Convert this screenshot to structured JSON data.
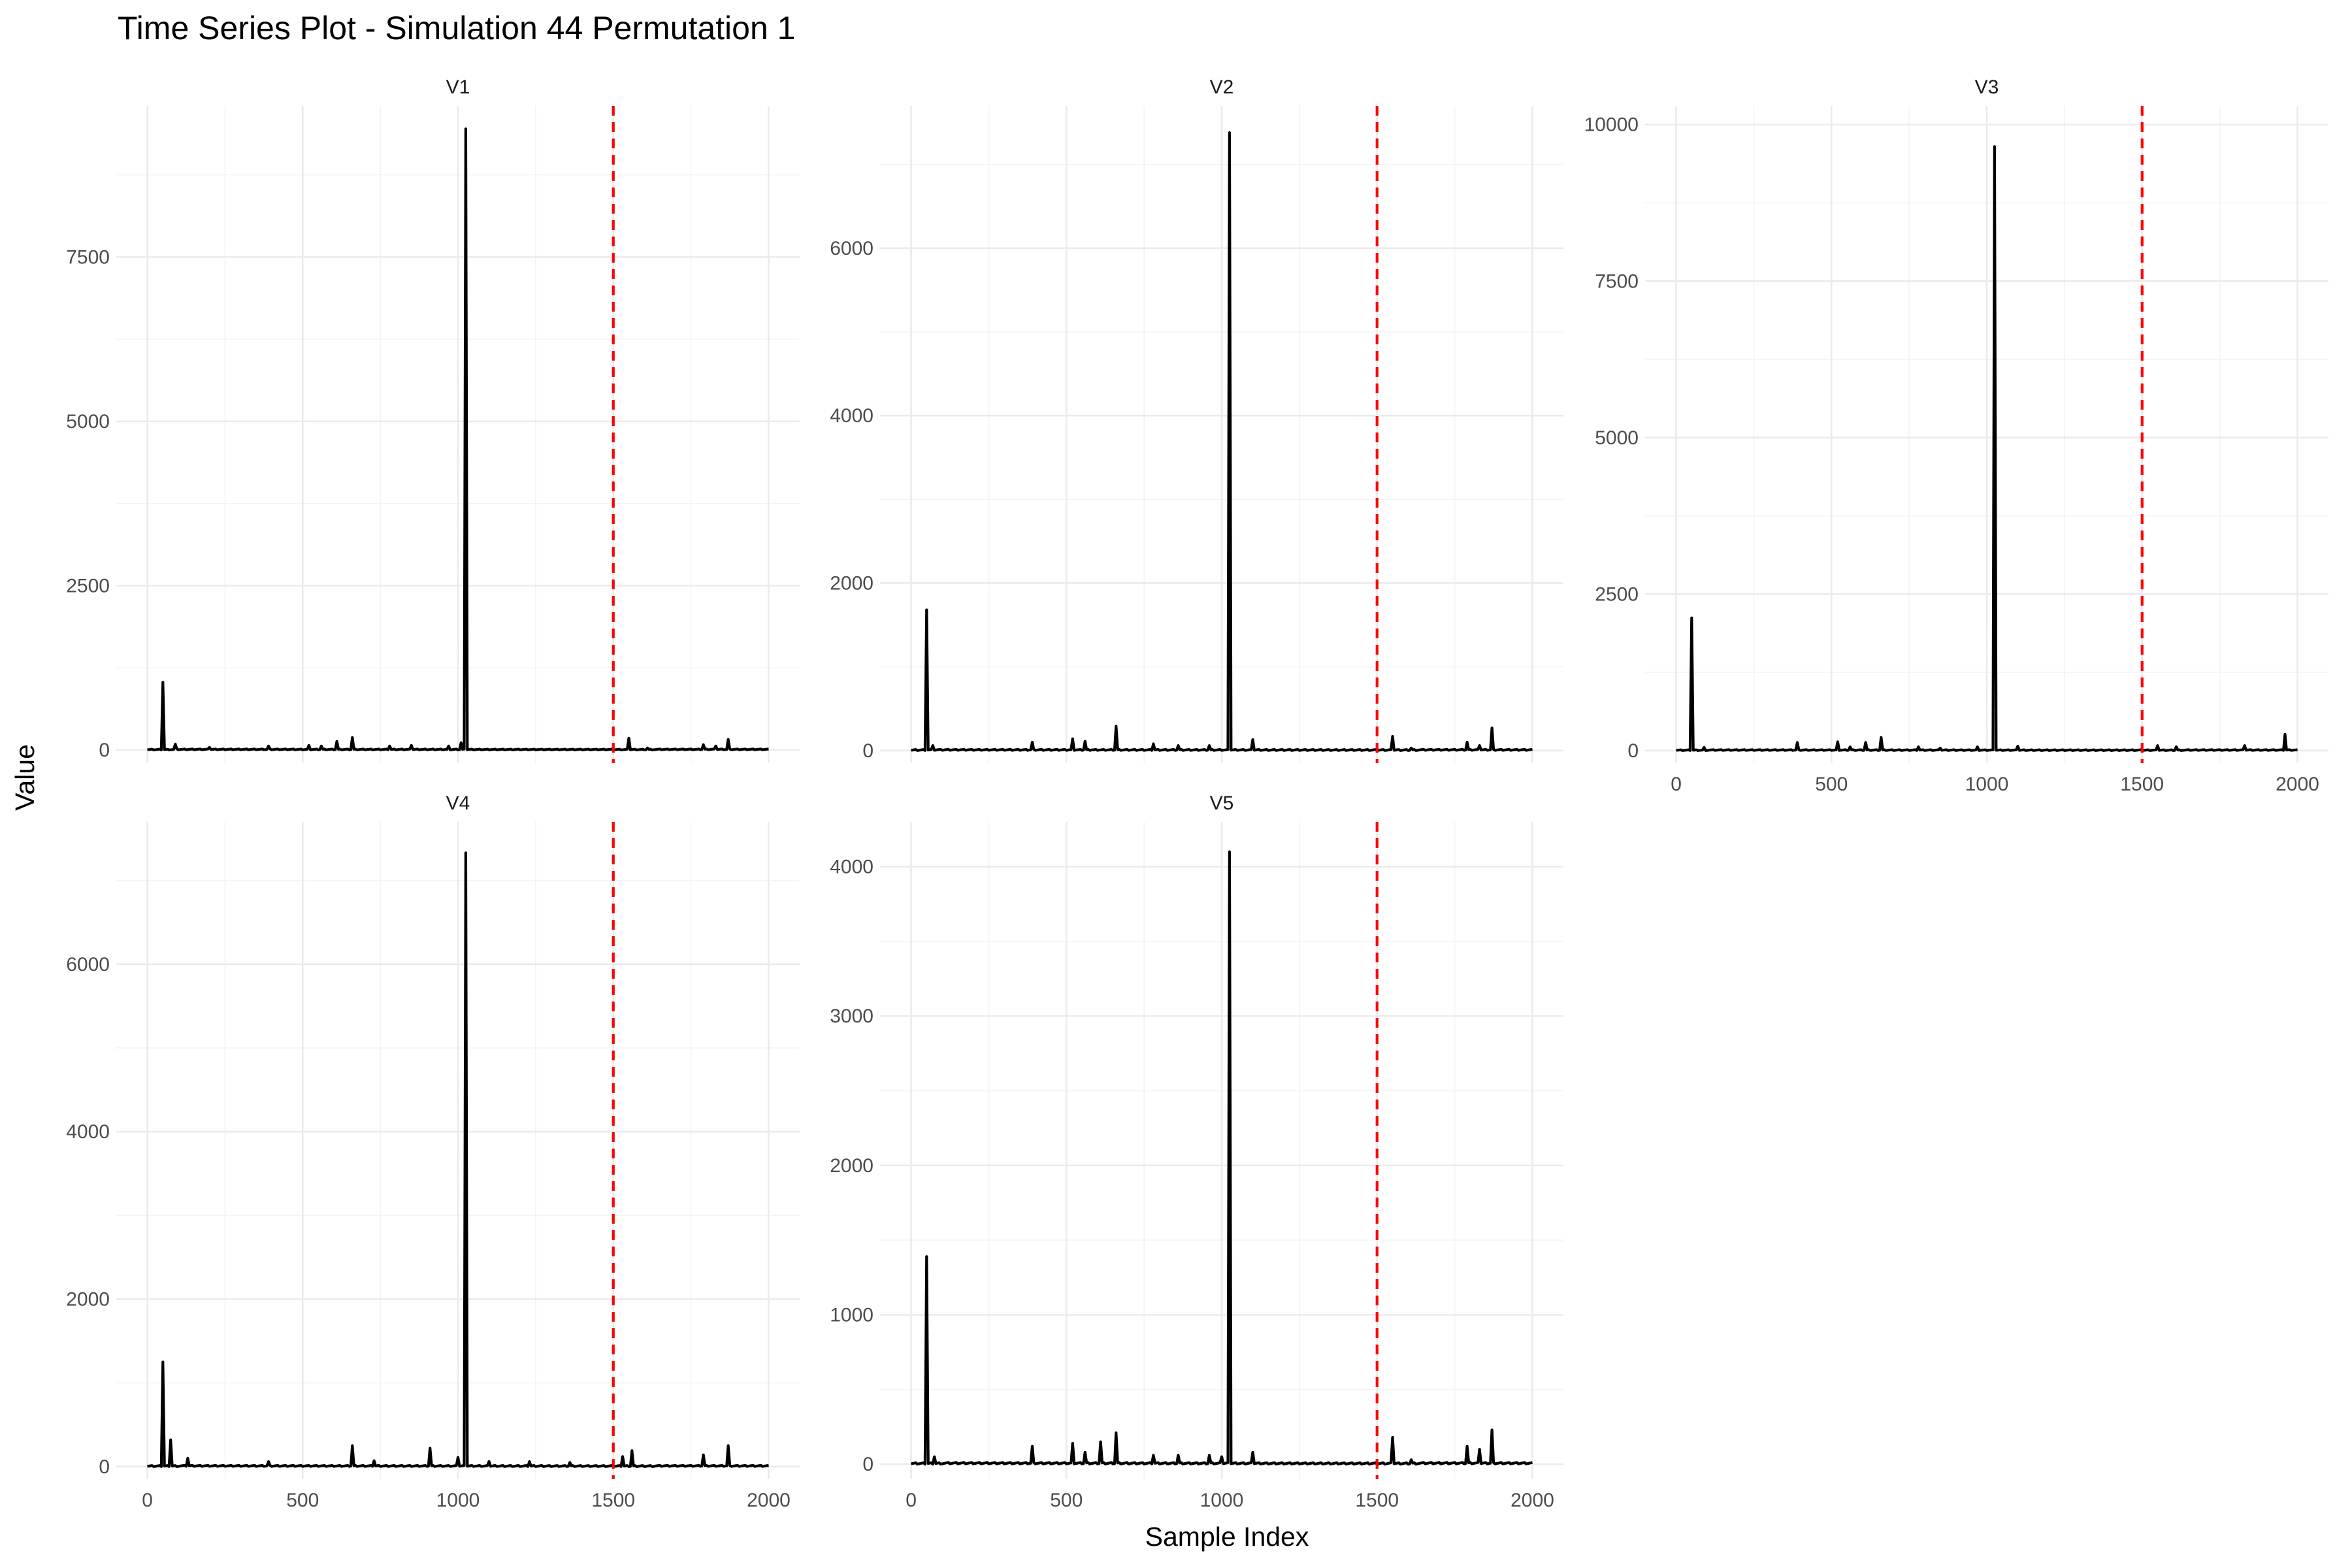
{
  "chart_data": {
    "type": "line",
    "title": "Time Series Plot - Simulation 44 Permutation 1",
    "xlabel": "Sample Index",
    "ylabel": "Value",
    "x_range": [
      0,
      2000
    ],
    "x_ticks": [
      0,
      500,
      1000,
      1500,
      2000
    ],
    "vline_x": 1500,
    "vline_color": "#ff0000",
    "line_color": "#000000",
    "grid": true,
    "panels": [
      {
        "name": "V1",
        "ylim": [
          -200,
          9800
        ],
        "y_ticks": [
          0,
          2500,
          5000,
          7500
        ],
        "show_x_labels": false,
        "baseline": 10,
        "spikes": [
          [
            50,
            1030
          ],
          [
            90,
            90
          ],
          [
            200,
            40
          ],
          [
            390,
            60
          ],
          [
            520,
            70
          ],
          [
            560,
            60
          ],
          [
            610,
            130
          ],
          [
            660,
            190
          ],
          [
            780,
            60
          ],
          [
            850,
            70
          ],
          [
            970,
            60
          ],
          [
            1010,
            110
          ],
          [
            1025,
            9450
          ],
          [
            1550,
            180
          ],
          [
            1610,
            30
          ],
          [
            1790,
            80
          ],
          [
            1830,
            60
          ],
          [
            1870,
            160
          ]
        ]
      },
      {
        "name": "V2",
        "ylim": [
          -150,
          7700
        ],
        "y_ticks": [
          0,
          2000,
          4000,
          6000
        ],
        "show_x_labels": false,
        "baseline": 10,
        "spikes": [
          [
            50,
            1680
          ],
          [
            70,
            60
          ],
          [
            390,
            100
          ],
          [
            520,
            140
          ],
          [
            560,
            110
          ],
          [
            660,
            290
          ],
          [
            780,
            80
          ],
          [
            860,
            60
          ],
          [
            960,
            60
          ],
          [
            1025,
            7380
          ],
          [
            1100,
            130
          ],
          [
            1550,
            170
          ],
          [
            1610,
            30
          ],
          [
            1790,
            100
          ],
          [
            1830,
            60
          ],
          [
            1870,
            270
          ]
        ]
      },
      {
        "name": "V3",
        "ylim": [
          -200,
          10300
        ],
        "y_ticks": [
          0,
          2500,
          5000,
          7500,
          10000
        ],
        "show_x_labels": true,
        "baseline": 10,
        "spikes": [
          [
            50,
            2120
          ],
          [
            90,
            50
          ],
          [
            390,
            130
          ],
          [
            520,
            140
          ],
          [
            560,
            60
          ],
          [
            610,
            130
          ],
          [
            660,
            210
          ],
          [
            780,
            60
          ],
          [
            850,
            40
          ],
          [
            970,
            60
          ],
          [
            1025,
            9650
          ],
          [
            1100,
            70
          ],
          [
            1550,
            80
          ],
          [
            1610,
            60
          ],
          [
            1830,
            80
          ],
          [
            1960,
            260
          ]
        ]
      },
      {
        "name": "V4",
        "ylim": [
          -150,
          7700
        ],
        "y_ticks": [
          0,
          2000,
          4000,
          6000
        ],
        "show_x_labels": true,
        "baseline": 10,
        "spikes": [
          [
            50,
            1250
          ],
          [
            75,
            320
          ],
          [
            130,
            100
          ],
          [
            390,
            60
          ],
          [
            660,
            250
          ],
          [
            730,
            70
          ],
          [
            910,
            220
          ],
          [
            1000,
            110
          ],
          [
            1025,
            7330
          ],
          [
            1100,
            60
          ],
          [
            1230,
            60
          ],
          [
            1360,
            50
          ],
          [
            1530,
            120
          ],
          [
            1560,
            190
          ],
          [
            1790,
            140
          ],
          [
            1870,
            250
          ]
        ]
      },
      {
        "name": "V5",
        "ylim": [
          -100,
          4300
        ],
        "y_ticks": [
          0,
          1000,
          2000,
          3000,
          4000
        ],
        "show_x_labels": true,
        "baseline": 8,
        "spikes": [
          [
            50,
            1390
          ],
          [
            75,
            50
          ],
          [
            390,
            120
          ],
          [
            520,
            140
          ],
          [
            560,
            80
          ],
          [
            610,
            150
          ],
          [
            660,
            210
          ],
          [
            780,
            60
          ],
          [
            860,
            60
          ],
          [
            960,
            60
          ],
          [
            1000,
            50
          ],
          [
            1025,
            4100
          ],
          [
            1100,
            80
          ],
          [
            1550,
            180
          ],
          [
            1610,
            30
          ],
          [
            1790,
            120
          ],
          [
            1830,
            100
          ],
          [
            1870,
            230
          ]
        ]
      }
    ]
  }
}
